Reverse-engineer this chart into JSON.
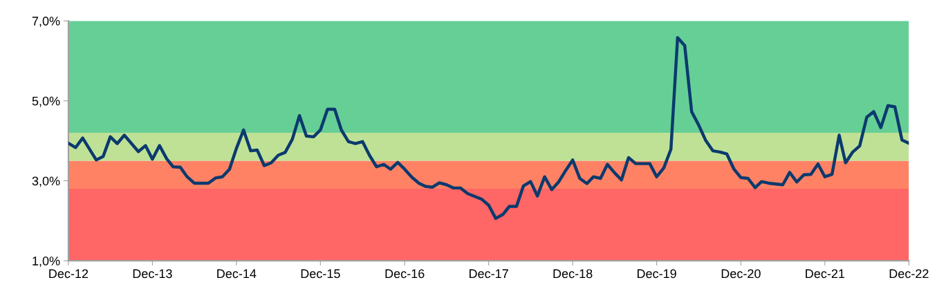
{
  "chart_data": {
    "type": "line",
    "x": [
      "2012-12",
      "2013-01",
      "2013-02",
      "2013-04",
      "2013-05",
      "2013-06",
      "2013-07",
      "2013-08",
      "2013-10",
      "2013-11",
      "2013-12",
      "2014-01",
      "2014-02",
      "2014-03",
      "2014-04",
      "2014-05",
      "2014-06",
      "2014-08",
      "2014-09",
      "2014-10",
      "2014-11",
      "2014-12",
      "2015-01",
      "2015-02",
      "2015-03",
      "2015-04",
      "2015-05",
      "2015-06",
      "2015-07",
      "2015-08",
      "2015-09",
      "2015-10",
      "2015-11",
      "2015-12",
      "2016-01",
      "2016-02",
      "2016-03",
      "2016-04",
      "2016-05",
      "2016-06",
      "2016-07",
      "2016-08",
      "2016-09",
      "2016-10",
      "2016-11",
      "2016-12",
      "2017-01",
      "2017-02",
      "2017-03",
      "2017-04",
      "2017-05",
      "2017-06",
      "2017-07",
      "2017-08",
      "2017-09",
      "2017-10",
      "2017-11",
      "2017-12",
      "2018-01",
      "2018-02",
      "2018-03",
      "2018-04",
      "2018-05",
      "2018-06",
      "2018-07",
      "2018-08",
      "2018-09",
      "2018-10",
      "2018-11",
      "2018-12",
      "2019-01",
      "2019-02",
      "2019-03",
      "2019-04",
      "2019-05",
      "2019-06",
      "2019-07",
      "2019-08",
      "2019-09",
      "2019-11",
      "2019-12",
      "2020-01",
      "2020-02",
      "2020-03",
      "2020-04",
      "2020-05",
      "2020-06",
      "2020-07",
      "2020-08",
      "2020-09",
      "2020-10",
      "2020-11",
      "2020-12",
      "2021-01",
      "2021-02",
      "2021-03",
      "2021-04",
      "2021-06",
      "2021-07",
      "2021-08",
      "2021-09",
      "2021-10",
      "2021-11",
      "2021-12",
      "2022-01",
      "2022-02",
      "2022-03",
      "2022-04",
      "2022-05",
      "2022-06",
      "2022-07",
      "2022-08",
      "2022-09",
      "2022-10",
      "2022-11",
      "2022-12"
    ],
    "series": [
      {
        "color": "#0b3a6e",
        "values": [
          3.94,
          3.83,
          4.07,
          3.52,
          3.61,
          4.1,
          3.93,
          4.14,
          3.73,
          3.88,
          3.54,
          3.88,
          3.55,
          3.35,
          3.34,
          3.1,
          2.94,
          2.94,
          3.07,
          3.1,
          3.29,
          3.81,
          4.27,
          3.75,
          3.77,
          3.38,
          3.45,
          3.64,
          3.71,
          4.04,
          4.63,
          4.12,
          4.1,
          4.27,
          4.79,
          4.79,
          4.27,
          3.98,
          3.93,
          3.98,
          3.64,
          3.35,
          3.41,
          3.29,
          3.46,
          3.29,
          3.09,
          2.94,
          2.86,
          2.84,
          2.95,
          2.9,
          2.82,
          2.82,
          2.68,
          2.61,
          2.54,
          2.39,
          2.06,
          2.16,
          2.36,
          2.36,
          2.87,
          2.98,
          2.62,
          3.1,
          2.78,
          2.97,
          3.26,
          3.52,
          3.06,
          2.93,
          3.1,
          3.06,
          3.41,
          3.2,
          3.02,
          3.58,
          3.43,
          3.43,
          3.1,
          3.32,
          3.79,
          6.58,
          6.38,
          4.73,
          4.39,
          4.01,
          3.75,
          3.72,
          3.67,
          3.29,
          3.08,
          3.06,
          2.83,
          2.98,
          2.94,
          2.9,
          3.21,
          2.97,
          3.15,
          3.16,
          3.42,
          3.1,
          3.16,
          4.14,
          3.45,
          3.72,
          3.87,
          4.59,
          4.73,
          4.33,
          4.88,
          4.85,
          4.02,
          3.94
        ]
      }
    ],
    "xlim": [
      "2012-12",
      "2022-12"
    ],
    "xticks": [
      {
        "value": "2012-12",
        "label": "Dec-12"
      },
      {
        "value": "2013-12",
        "label": "Dec-13"
      },
      {
        "value": "2014-12",
        "label": "Dec-14"
      },
      {
        "value": "2015-12",
        "label": "Dec-15"
      },
      {
        "value": "2016-12",
        "label": "Dec-16"
      },
      {
        "value": "2017-12",
        "label": "Dec-17"
      },
      {
        "value": "2018-12",
        "label": "Dec-18"
      },
      {
        "value": "2019-12",
        "label": "Dec-19"
      },
      {
        "value": "2020-12",
        "label": "Dec-20"
      },
      {
        "value": "2021-12",
        "label": "Dec-21"
      },
      {
        "value": "2022-12",
        "label": "Dec-22"
      }
    ],
    "ylim": [
      1.0,
      7.0
    ],
    "yticks": [
      {
        "value": 1.0,
        "label": "1,0%"
      },
      {
        "value": 3.0,
        "label": "3,0%"
      },
      {
        "value": 5.0,
        "label": "5,0%"
      },
      {
        "value": 7.0,
        "label": "7,0%"
      }
    ],
    "bands": [
      {
        "axis": "y",
        "from": 1.0,
        "to": 2.8,
        "color": "#ff6666"
      },
      {
        "axis": "y",
        "from": 2.8,
        "to": 3.5,
        "color": "#ff8264"
      },
      {
        "axis": "y",
        "from": 3.5,
        "to": 4.2,
        "color": "#bfe196"
      },
      {
        "axis": "y",
        "from": 4.2,
        "to": 7.0,
        "color": "#66cf96"
      }
    ],
    "grid": false,
    "legend": false,
    "marker": "none",
    "line_style": "solid"
  }
}
